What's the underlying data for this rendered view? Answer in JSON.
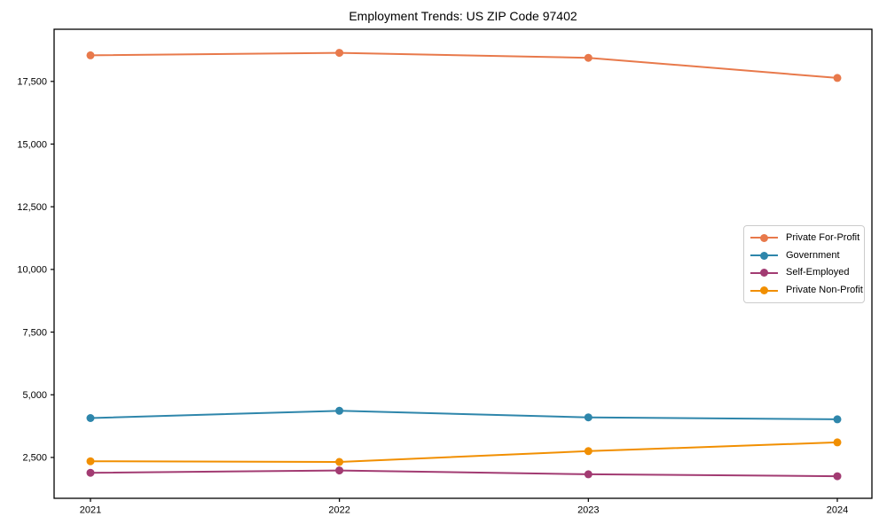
{
  "title": "Employment Trends: US ZIP Code 97402",
  "chart_data": {
    "type": "line",
    "title": "Employment Trends: US ZIP Code 97402",
    "xlabel": "",
    "ylabel": "",
    "x": [
      2021,
      2022,
      2023,
      2024
    ],
    "x_tick_labels": [
      "2021",
      "2022",
      "2023",
      "2024"
    ],
    "y_ticks": [
      2500,
      5000,
      7500,
      10000,
      12500,
      15000,
      17500
    ],
    "y_tick_labels": [
      "2,500",
      "5,000",
      "7,500",
      "10,000",
      "12,500",
      "15,000",
      "17,500"
    ],
    "xlim": [
      2020.854,
      2024.139
    ],
    "ylim": [
      870,
      19580
    ],
    "grid": false,
    "legend_position": "center right",
    "series": [
      {
        "name": "Private For-Profit",
        "color": "#E8794B",
        "values": [
          18540,
          18640,
          18440,
          17640
        ]
      },
      {
        "name": "Government",
        "color": "#2E86AB",
        "values": [
          4070,
          4360,
          4100,
          4020
        ]
      },
      {
        "name": "Self-Employed",
        "color": "#A23B72",
        "values": [
          1890,
          1980,
          1830,
          1750
        ]
      },
      {
        "name": "Private Non-Profit",
        "color": "#F18F01",
        "values": [
          2350,
          2320,
          2750,
          3100
        ]
      }
    ],
    "axis_color": "#000000",
    "tick_label_color": "#000000"
  }
}
